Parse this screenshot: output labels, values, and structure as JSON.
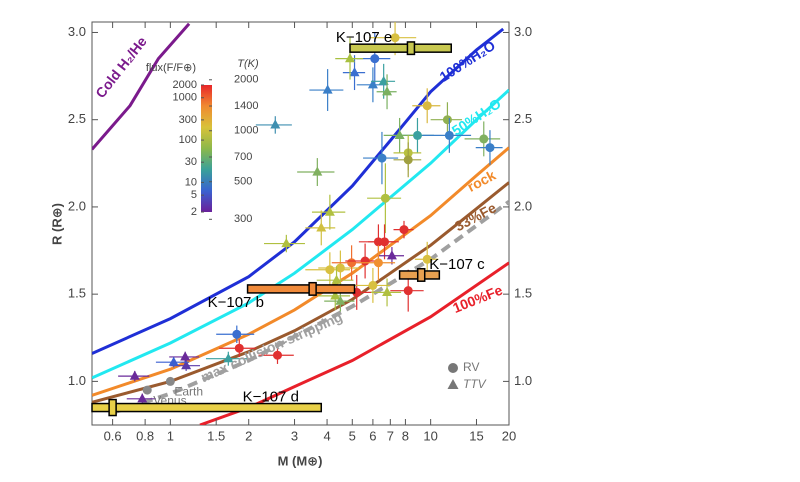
{
  "chart_data": {
    "type": "scatter",
    "x_label": "M (M⊕)",
    "y_label": "R (R⊕)",
    "xscale": "log",
    "xlim": [
      0.5,
      20
    ],
    "ylim": [
      0.75,
      3.06
    ],
    "xticks": [
      0.6,
      0.8,
      1,
      1.5,
      2,
      3,
      4,
      5,
      6,
      7,
      8,
      10,
      15,
      20
    ],
    "yticks": [
      {
        "value": 1,
        "label": "1.0"
      },
      {
        "value": 1.5,
        "label": "1.5"
      },
      {
        "value": 2,
        "label": "2.0"
      },
      {
        "value": 2.5,
        "label": "2.5"
      },
      {
        "value": 3,
        "label": "3.0"
      }
    ],
    "curves": [
      {
        "name": "Cold H₂/He",
        "color": "#7b1a8c",
        "dashed": false,
        "x": [
          0.5,
          0.7,
          0.9,
          1.18
        ],
        "values": [
          2.33,
          2.58,
          2.85,
          3.05
        ]
      },
      {
        "name": "100%H₂O",
        "color": "#1f2fd6",
        "dashed": false,
        "x": [
          0.5,
          1,
          2,
          3,
          5,
          7,
          10,
          15,
          19
        ],
        "values": [
          1.16,
          1.36,
          1.6,
          1.8,
          2.12,
          2.38,
          2.66,
          2.9,
          3.02
        ]
      },
      {
        "name": "50%H₂O",
        "color": "#22e8f0",
        "dashed": false,
        "x": [
          0.5,
          1,
          2,
          3,
          5,
          10,
          15,
          20
        ],
        "values": [
          1.02,
          1.22,
          1.45,
          1.62,
          1.87,
          2.25,
          2.5,
          2.67
        ]
      },
      {
        "name": "rock",
        "color": "#f28a2a",
        "dashed": false,
        "x": [
          0.5,
          1,
          2,
          3,
          5,
          10,
          15,
          20
        ],
        "values": [
          0.92,
          1.07,
          1.27,
          1.41,
          1.62,
          1.95,
          2.18,
          2.34
        ]
      },
      {
        "name": "33%Fe",
        "color": "#9a5a2e",
        "dashed": false,
        "x": [
          0.5,
          1,
          2,
          3,
          5,
          10,
          15,
          20
        ],
        "values": [
          0.88,
          1.0,
          1.17,
          1.29,
          1.47,
          1.78,
          1.99,
          2.14
        ]
      },
      {
        "name": "max collision-stripping",
        "color": "#a0a0a0",
        "dashed": true,
        "x": [
          0.6,
          1,
          2,
          5,
          10,
          20
        ],
        "values": [
          0.82,
          0.93,
          1.12,
          1.43,
          1.7,
          2.03
        ]
      },
      {
        "name": "100%Fe",
        "color": "#e8202a",
        "dashed": false,
        "x": [
          1.3,
          2,
          3,
          5,
          10,
          20
        ],
        "values": [
          0.75,
          0.85,
          0.97,
          1.12,
          1.37,
          1.68
        ]
      }
    ],
    "points": [
      {
        "x": 2.53,
        "y": 2.47,
        "xerr": 0.4,
        "yerr": 0.05,
        "marker": "triangle",
        "color": "#3f8fb0"
      },
      {
        "x": 4.02,
        "y": 2.67,
        "xerr": 0.6,
        "yerr": 0.12,
        "marker": "triangle",
        "color": "#3a7fc8"
      },
      {
        "x": 5.1,
        "y": 2.77,
        "xerr": 0.5,
        "yerr": 0.1,
        "marker": "triangle",
        "color": "#3a6fd0"
      },
      {
        "x": 6.1,
        "y": 2.85,
        "xerr": 0.9,
        "yerr": 0.15,
        "marker": "circle",
        "color": "#3a6fd0"
      },
      {
        "x": 6.0,
        "y": 2.7,
        "xerr": 0.8,
        "yerr": 0.1,
        "marker": "triangle",
        "color": "#3a7fc8"
      },
      {
        "x": 6.6,
        "y": 2.72,
        "xerr": 0.7,
        "yerr": 0.1,
        "marker": "triangle",
        "color": "#3aa0a0"
      },
      {
        "x": 6.8,
        "y": 2.66,
        "xerr": 0.6,
        "yerr": 0.1,
        "marker": "triangle",
        "color": "#7ab060"
      },
      {
        "x": 4.9,
        "y": 2.85,
        "xerr": 0.6,
        "yerr": 0.12,
        "marker": "triangle",
        "color": "#a8c040"
      },
      {
        "x": 7.3,
        "y": 2.97,
        "xerr": 1.5,
        "yerr": 0.1,
        "marker": "circle",
        "color": "#d8c040"
      },
      {
        "x": 9.7,
        "y": 2.58,
        "xerr": 1.2,
        "yerr": 0.1,
        "marker": "circle",
        "color": "#d8b840"
      },
      {
        "x": 11.6,
        "y": 2.5,
        "xerr": 1.6,
        "yerr": 0.1,
        "marker": "circle",
        "color": "#90b050"
      },
      {
        "x": 8.9,
        "y": 2.41,
        "xerr": 1.4,
        "yerr": 0.1,
        "marker": "circle",
        "color": "#3aa0a0"
      },
      {
        "x": 11.8,
        "y": 2.41,
        "xerr": 2.5,
        "yerr": 0.1,
        "marker": "circle",
        "color": "#3a7fc8"
      },
      {
        "x": 7.6,
        "y": 2.41,
        "xerr": 1.0,
        "yerr": 0.1,
        "marker": "triangle",
        "color": "#7ab060"
      },
      {
        "x": 8.2,
        "y": 2.31,
        "xerr": 1.0,
        "yerr": 0.1,
        "marker": "circle",
        "color": "#b8c040"
      },
      {
        "x": 6.5,
        "y": 2.28,
        "xerr": 1.0,
        "yerr": 0.15,
        "marker": "circle",
        "color": "#3a7fc8"
      },
      {
        "x": 8.2,
        "y": 2.27,
        "xerr": 1.0,
        "yerr": 0.1,
        "marker": "circle",
        "color": "#a0a040"
      },
      {
        "x": 16,
        "y": 2.39,
        "xerr": 2.5,
        "yerr": 0.1,
        "marker": "circle",
        "color": "#80b060"
      },
      {
        "x": 16.9,
        "y": 2.34,
        "xerr": 2.0,
        "yerr": 0.1,
        "marker": "circle",
        "color": "#3a7fc8"
      },
      {
        "x": 3.67,
        "y": 2.2,
        "xerr": 0.6,
        "yerr": 0.08,
        "marker": "triangle",
        "color": "#80b060"
      },
      {
        "x": 4.1,
        "y": 1.97,
        "xerr": 0.6,
        "yerr": 0.1,
        "marker": "triangle",
        "color": "#b0c040"
      },
      {
        "x": 3.8,
        "y": 1.88,
        "xerr": 0.5,
        "yerr": 0.1,
        "marker": "triangle",
        "color": "#d0c040"
      },
      {
        "x": 2.79,
        "y": 1.79,
        "xerr": 0.5,
        "yerr": 0.05,
        "marker": "triangle",
        "color": "#b0c040"
      },
      {
        "x": 6.7,
        "y": 2.05,
        "xerr": 1.0,
        "yerr": 0.2,
        "marker": "circle",
        "color": "#b0c040"
      },
      {
        "x": 4.1,
        "y": 1.64,
        "xerr": 0.8,
        "yerr": 0.1,
        "marker": "circle",
        "color": "#d8c040"
      },
      {
        "x": 4.5,
        "y": 1.65,
        "xerr": 0.8,
        "yerr": 0.1,
        "marker": "circle",
        "color": "#d8c040"
      },
      {
        "x": 4.35,
        "y": 1.58,
        "xerr": 0.7,
        "yerr": 0.08,
        "marker": "triangle",
        "color": "#b0c040"
      },
      {
        "x": 4.3,
        "y": 1.49,
        "xerr": 0.6,
        "yerr": 0.08,
        "marker": "triangle",
        "color": "#a8c040"
      },
      {
        "x": 4.5,
        "y": 1.46,
        "xerr": 0.6,
        "yerr": 0.06,
        "marker": "triangle",
        "color": "#80b060"
      },
      {
        "x": 4.97,
        "y": 1.68,
        "xerr": 0.8,
        "yerr": 0.1,
        "marker": "circle",
        "color": "#f07030"
      },
      {
        "x": 5.6,
        "y": 1.69,
        "xerr": 0.9,
        "yerr": 0.1,
        "marker": "circle",
        "color": "#e03030"
      },
      {
        "x": 6.3,
        "y": 1.8,
        "xerr": 1.0,
        "yerr": 0.1,
        "marker": "circle",
        "color": "#e03030"
      },
      {
        "x": 6.65,
        "y": 1.8,
        "xerr": 0.9,
        "yerr": 0.1,
        "marker": "circle",
        "color": "#e03030"
      },
      {
        "x": 7.9,
        "y": 1.87,
        "xerr": 0.7,
        "yerr": 0.05,
        "marker": "circle",
        "color": "#e03030"
      },
      {
        "x": 7.1,
        "y": 1.72,
        "xerr": 0.8,
        "yerr": 0.05,
        "marker": "triangle",
        "color": "#6a2a9a"
      },
      {
        "x": 6.3,
        "y": 1.68,
        "xerr": 1.0,
        "yerr": 0.1,
        "marker": "circle",
        "color": "#f09030"
      },
      {
        "x": 5.2,
        "y": 1.51,
        "xerr": 0.9,
        "yerr": 0.1,
        "marker": "circle",
        "color": "#e03030"
      },
      {
        "x": 6.0,
        "y": 1.55,
        "xerr": 1.0,
        "yerr": 0.1,
        "marker": "circle",
        "color": "#d8c040"
      },
      {
        "x": 6.8,
        "y": 1.51,
        "xerr": 0.9,
        "yerr": 0.08,
        "marker": "triangle",
        "color": "#b0c040"
      },
      {
        "x": 8.2,
        "y": 1.52,
        "xerr": 1.2,
        "yerr": 0.12,
        "marker": "circle",
        "color": "#e03030"
      },
      {
        "x": 9.7,
        "y": 1.7,
        "xerr": 1.0,
        "yerr": 0.1,
        "marker": "circle",
        "color": "#d8c040"
      },
      {
        "x": 2.58,
        "y": 1.15,
        "xerr": 0.4,
        "yerr": 0.05,
        "marker": "circle",
        "color": "#e03030"
      },
      {
        "x": 1.84,
        "y": 1.19,
        "xerr": 0.3,
        "yerr": 0.05,
        "marker": "circle",
        "color": "#e03030"
      },
      {
        "x": 1.8,
        "y": 1.27,
        "xerr": 0.3,
        "yerr": 0.05,
        "marker": "circle",
        "color": "#3a6fd0"
      },
      {
        "x": 1.67,
        "y": 1.13,
        "xerr": 0.3,
        "yerr": 0.04,
        "marker": "triangle",
        "color": "#3aa0a0"
      },
      {
        "x": 1.14,
        "y": 1.14,
        "xerr": 0.15,
        "yerr": 0.03,
        "marker": "triangle",
        "color": "#6a2a9a"
      },
      {
        "x": 1.15,
        "y": 1.09,
        "xerr": 0.15,
        "yerr": 0.03,
        "marker": "triangle",
        "color": "#5a3aa8"
      },
      {
        "x": 1.03,
        "y": 1.11,
        "xerr": 0.15,
        "yerr": 0.03,
        "marker": "triangle",
        "color": "#3a5fd0"
      },
      {
        "x": 0.73,
        "y": 1.03,
        "xerr": 0.1,
        "yerr": 0.03,
        "marker": "triangle",
        "color": "#6a2a9a"
      },
      {
        "x": 0.78,
        "y": 0.9,
        "xerr": 0.1,
        "yerr": 0.03,
        "marker": "triangle",
        "color": "#6a2a9a"
      }
    ],
    "solar_planets": [
      {
        "label": "Earth",
        "x": 1,
        "y": 1,
        "color": "#888888"
      },
      {
        "label": "Venus",
        "x": 0.815,
        "y": 0.95,
        "color": "#888888"
      }
    ],
    "k2_planets": [
      {
        "label": "K−107 b",
        "x": 3.52,
        "y": 1.53,
        "xrange": [
          1.98,
          5.1
        ],
        "yerr": 0.03,
        "color": "#f08a3a"
      },
      {
        "label": "K−107 c",
        "x": 9.2,
        "y": 1.61,
        "xrange": [
          7.6,
          10.8
        ],
        "yerr": 0.03,
        "color": "#e8a050"
      },
      {
        "label": "K−107 d",
        "x": 0.6,
        "y": 0.85,
        "xrange": [
          0.5,
          3.8
        ],
        "yerr": 0.04,
        "color": "#e8d048"
      },
      {
        "label": "K−107 e",
        "x": 8.4,
        "y": 2.91,
        "xrange": [
          4.9,
          12
        ],
        "yerr": 0.03,
        "color": "#c8c850"
      }
    ],
    "colorbar": {
      "flux_title": "flux(F/F⊕)",
      "temp_title": "T(K)",
      "flux_lim": [
        2,
        2000
      ],
      "colors": [
        "#e8262a",
        "#f08a30",
        "#d8c23a",
        "#8cb84a",
        "#3aa09a",
        "#3a62d0",
        "#6a1f9a"
      ],
      "flux_ticks": [
        2000,
        1000,
        300,
        100,
        30,
        10,
        5,
        2
      ],
      "temp_ticks": [
        2000,
        1400,
        1000,
        700,
        500,
        300
      ]
    },
    "legend": [
      {
        "marker": "circle",
        "label": "RV"
      },
      {
        "marker": "triangle",
        "label": "TTV"
      }
    ]
  }
}
